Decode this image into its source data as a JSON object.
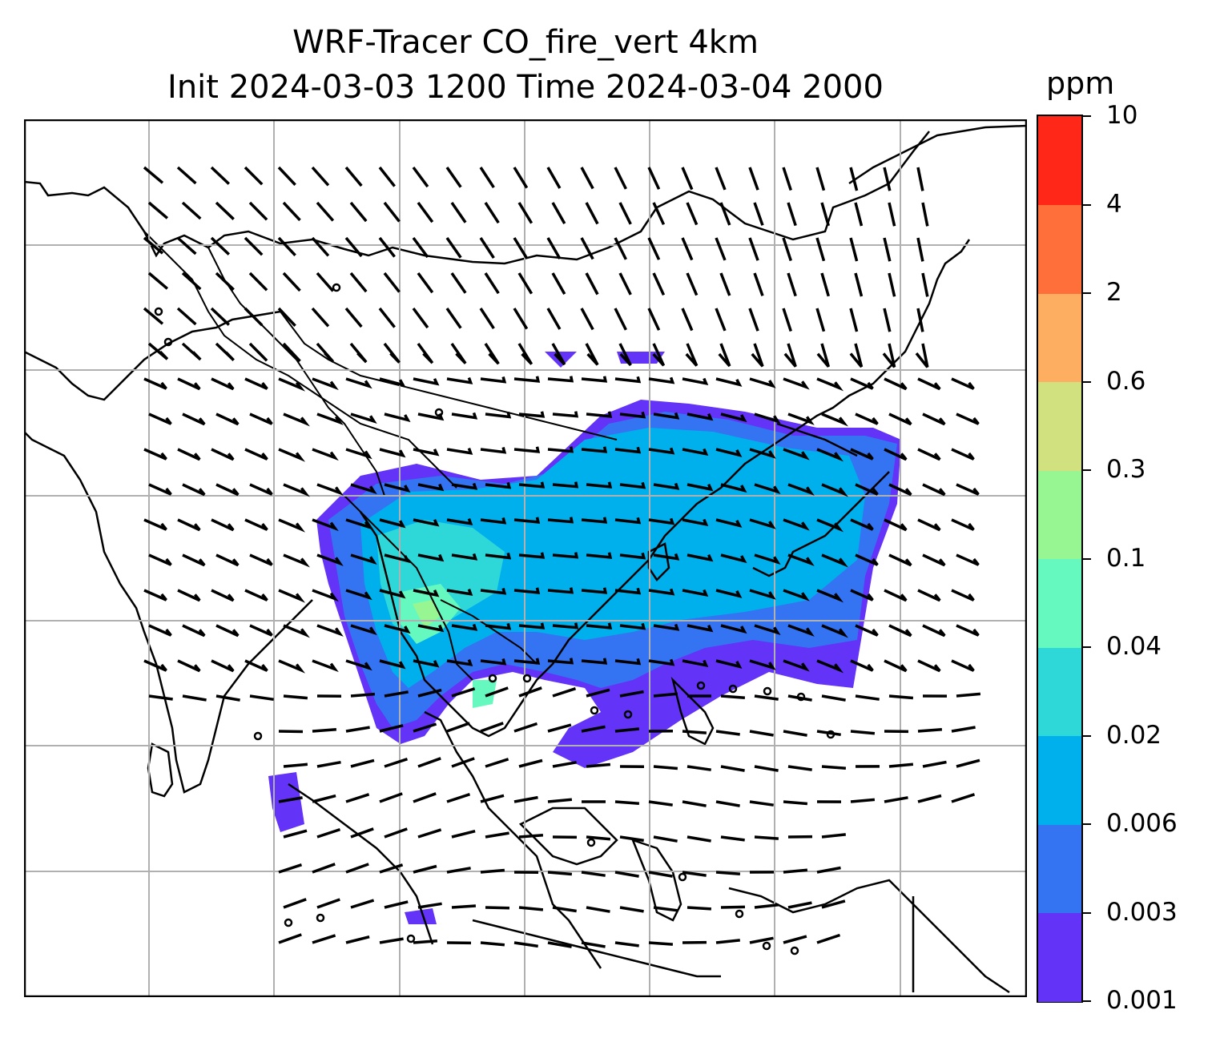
{
  "title": {
    "line1": "WRF-Tracer CO_fire_vert 4km",
    "line2": "Init 2024-03-03 1200 Time 2024-03-04 2000"
  },
  "colorbar": {
    "unit": "ppm",
    "levels": [
      "0.001",
      "0.003",
      "0.006",
      "0.02",
      "0.04",
      "0.1",
      "0.3",
      "0.6",
      "2",
      "4",
      "10"
    ],
    "colors": [
      "#6333f7",
      "#3474f2",
      "#00b0ec",
      "#2fd8d8",
      "#66f9bf",
      "#97f692",
      "#d2e17f",
      "#fdae61",
      "#ff6f3a",
      "#ff2717"
    ]
  },
  "map": {
    "features": [
      "coastlines",
      "country-borders",
      "lat-lon-gridlines",
      "wind-barbs",
      "tracer-concentration"
    ],
    "gridline_color": "#b0b0b0"
  }
}
